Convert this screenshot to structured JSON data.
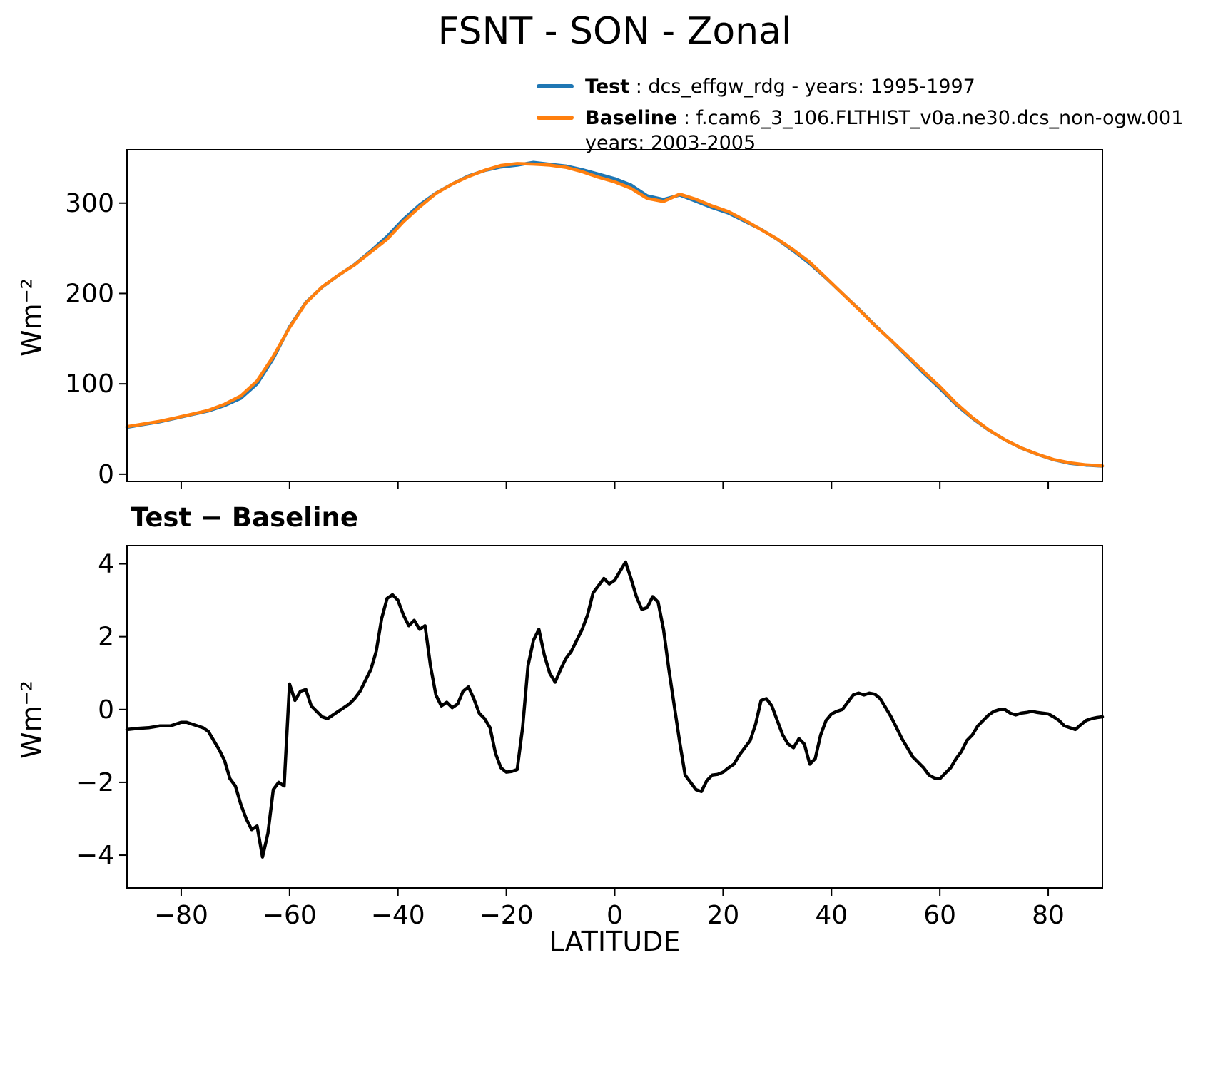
{
  "title": "FSNT - SON - Zonal",
  "colors": {
    "test": "#1f77b4",
    "baseline": "#ff7f0e",
    "diff": "#000000"
  },
  "legend": {
    "test_label": "Test",
    "test_desc": " : dcs_effgw_rdg - years: 1995-1997",
    "baseline_label": "Baseline",
    "baseline_desc": " : f.cam6_3_106.FLTHIST_v0a.ne30.dcs_non-ogw.001",
    "baseline_desc2": "years: 2003-2005"
  },
  "chart_data": [
    {
      "type": "line",
      "title": "FSNT - SON - Zonal",
      "xlabel": "",
      "ylabel": "Wm⁻²",
      "xlim": [
        -90,
        90
      ],
      "ylim": [
        -8,
        359
      ],
      "xticks": [
        -80,
        -60,
        -40,
        -20,
        0,
        20,
        40,
        60,
        80
      ],
      "yticks": [
        0,
        100,
        200,
        300
      ],
      "x": [
        -90,
        -87,
        -84,
        -81,
        -78,
        -75,
        -72,
        -69,
        -66,
        -63,
        -60,
        -57,
        -54,
        -51,
        -48,
        -45,
        -42,
        -39,
        -36,
        -33,
        -30,
        -27,
        -24,
        -21,
        -18,
        -15,
        -12,
        -9,
        -6,
        -3,
        0,
        3,
        6,
        9,
        12,
        15,
        18,
        21,
        24,
        27,
        30,
        33,
        36,
        39,
        42,
        45,
        48,
        51,
        54,
        57,
        60,
        63,
        66,
        69,
        72,
        75,
        78,
        81,
        84,
        87,
        90
      ],
      "series": [
        {
          "name": "Test",
          "color": "#1f77b4",
          "values": [
            52,
            55,
            58,
            62,
            66,
            70,
            76,
            84,
            100,
            128,
            163,
            190,
            207,
            220,
            232,
            247,
            263,
            282,
            298,
            311,
            321,
            330,
            336,
            340,
            342,
            345,
            343,
            341,
            337,
            332,
            327,
            320,
            308,
            304,
            309,
            302,
            295,
            289,
            280,
            271,
            260,
            247,
            233,
            217,
            200,
            183,
            165,
            148,
            130,
            112,
            95,
            77,
            62,
            49,
            38,
            29,
            22,
            16,
            12,
            10,
            9
          ]
        },
        {
          "name": "Baseline",
          "color": "#ff7f0e",
          "values": [
            52.6,
            55.5,
            58.5,
            62.4,
            66.4,
            70.6,
            77.4,
            86.6,
            103.2,
            130.2,
            162.3,
            189.5,
            207.2,
            220.1,
            231.7,
            245.9,
            260,
            279.4,
            295.8,
            310.6,
            321,
            329.4,
            336.3,
            341.6,
            343.7,
            343.1,
            342,
            339.6,
            334.8,
            328.6,
            323.5,
            316.4,
            305.2,
            301.8,
            309.9,
            304.2,
            296.8,
            290.6,
            281.1,
            270.8,
            260.3,
            248.1,
            234.5,
            217.3,
            200,
            182.6,
            164.6,
            148.2,
            131.1,
            113.6,
            96.9,
            78.4,
            62.7,
            49.2,
            38,
            29.1,
            22.1,
            16.2,
            12.5,
            10.3,
            9.2
          ]
        }
      ]
    },
    {
      "type": "line",
      "title": "Test − Baseline",
      "xlabel": "LATITUDE",
      "ylabel": "Wm⁻²",
      "xlim": [
        -90,
        90
      ],
      "ylim": [
        -4.9,
        4.5
      ],
      "xticks": [
        -80,
        -60,
        -40,
        -20,
        0,
        20,
        40,
        60,
        80
      ],
      "yticks": [
        -4,
        -2,
        0,
        2,
        4
      ],
      "x": [
        -90,
        -88,
        -86,
        -84,
        -82,
        -80,
        -79,
        -78,
        -77,
        -76,
        -75,
        -74,
        -73,
        -72,
        -71,
        -70,
        -69,
        -68,
        -67,
        -66,
        -65,
        -64,
        -63,
        -62,
        -61,
        -60,
        -59,
        -58,
        -57,
        -56,
        -55,
        -54,
        -53,
        -52,
        -51,
        -50,
        -49,
        -48,
        -47,
        -46,
        -45,
        -44,
        -43,
        -42,
        -41,
        -40,
        -39,
        -38,
        -37,
        -36,
        -35,
        -34,
        -33,
        -32,
        -31,
        -30,
        -29,
        -28,
        -27,
        -26,
        -25,
        -24,
        -23,
        -22,
        -21,
        -20,
        -19,
        -18,
        -17,
        -16,
        -15,
        -14,
        -13,
        -12,
        -11,
        -10,
        -9,
        -8,
        -7,
        -6,
        -5,
        -4,
        -3,
        -2,
        -1,
        0,
        1,
        2,
        3,
        4,
        5,
        6,
        7,
        8,
        9,
        10,
        11,
        12,
        13,
        14,
        15,
        16,
        17,
        18,
        19,
        20,
        21,
        22,
        23,
        24,
        25,
        26,
        27,
        28,
        29,
        30,
        31,
        32,
        33,
        34,
        35,
        36,
        37,
        38,
        39,
        40,
        41,
        42,
        43,
        44,
        45,
        46,
        47,
        48,
        49,
        50,
        51,
        52,
        53,
        54,
        55,
        56,
        57,
        58,
        59,
        60,
        61,
        62,
        63,
        64,
        65,
        66,
        67,
        68,
        69,
        70,
        71,
        72,
        73,
        74,
        75,
        76,
        77,
        78,
        79,
        80,
        81,
        82,
        83,
        84,
        85,
        86,
        87,
        88,
        89,
        90
      ],
      "series": [
        {
          "name": "Test - Baseline",
          "color": "#000000",
          "values": [
            -0.55,
            -0.52,
            -0.5,
            -0.45,
            -0.45,
            -0.35,
            -0.35,
            -0.4,
            -0.45,
            -0.5,
            -0.6,
            -0.85,
            -1.1,
            -1.4,
            -1.9,
            -2.1,
            -2.6,
            -3.0,
            -3.3,
            -3.2,
            -4.05,
            -3.4,
            -2.2,
            -2.0,
            -2.1,
            0.7,
            0.25,
            0.5,
            0.55,
            0.1,
            -0.05,
            -0.2,
            -0.25,
            -0.15,
            -0.05,
            0.05,
            0.15,
            0.3,
            0.5,
            0.8,
            1.1,
            1.6,
            2.5,
            3.05,
            3.15,
            3.0,
            2.6,
            2.3,
            2.45,
            2.2,
            2.3,
            1.2,
            0.4,
            0.1,
            0.2,
            0.05,
            0.15,
            0.5,
            0.62,
            0.3,
            -0.1,
            -0.25,
            -0.5,
            -1.2,
            -1.6,
            -1.72,
            -1.7,
            -1.65,
            -0.5,
            1.2,
            1.9,
            2.2,
            1.5,
            1.0,
            0.75,
            1.1,
            1.4,
            1.6,
            1.9,
            2.2,
            2.6,
            3.2,
            3.4,
            3.6,
            3.45,
            3.55,
            3.8,
            4.05,
            3.6,
            3.1,
            2.75,
            2.8,
            3.1,
            2.95,
            2.2,
            1.1,
            0.1,
            -0.9,
            -1.8,
            -2.0,
            -2.2,
            -2.25,
            -1.95,
            -1.8,
            -1.78,
            -1.72,
            -1.6,
            -1.5,
            -1.25,
            -1.05,
            -0.85,
            -0.4,
            0.25,
            0.3,
            0.1,
            -0.3,
            -0.7,
            -0.95,
            -1.05,
            -0.8,
            -0.95,
            -1.5,
            -1.35,
            -0.7,
            -0.3,
            -0.12,
            -0.05,
            0.0,
            0.2,
            0.4,
            0.45,
            0.4,
            0.45,
            0.42,
            0.3,
            0.05,
            -0.2,
            -0.5,
            -0.8,
            -1.05,
            -1.3,
            -1.45,
            -1.6,
            -1.8,
            -1.88,
            -1.9,
            -1.75,
            -1.6,
            -1.35,
            -1.15,
            -0.85,
            -0.7,
            -0.45,
            -0.3,
            -0.15,
            -0.05,
            0.0,
            0.0,
            -0.1,
            -0.15,
            -0.1,
            -0.08,
            -0.05,
            -0.08,
            -0.1,
            -0.12,
            -0.2,
            -0.3,
            -0.45,
            -0.5,
            -0.55,
            -0.42,
            -0.3,
            -0.25,
            -0.22,
            -0.2
          ]
        }
      ]
    }
  ]
}
